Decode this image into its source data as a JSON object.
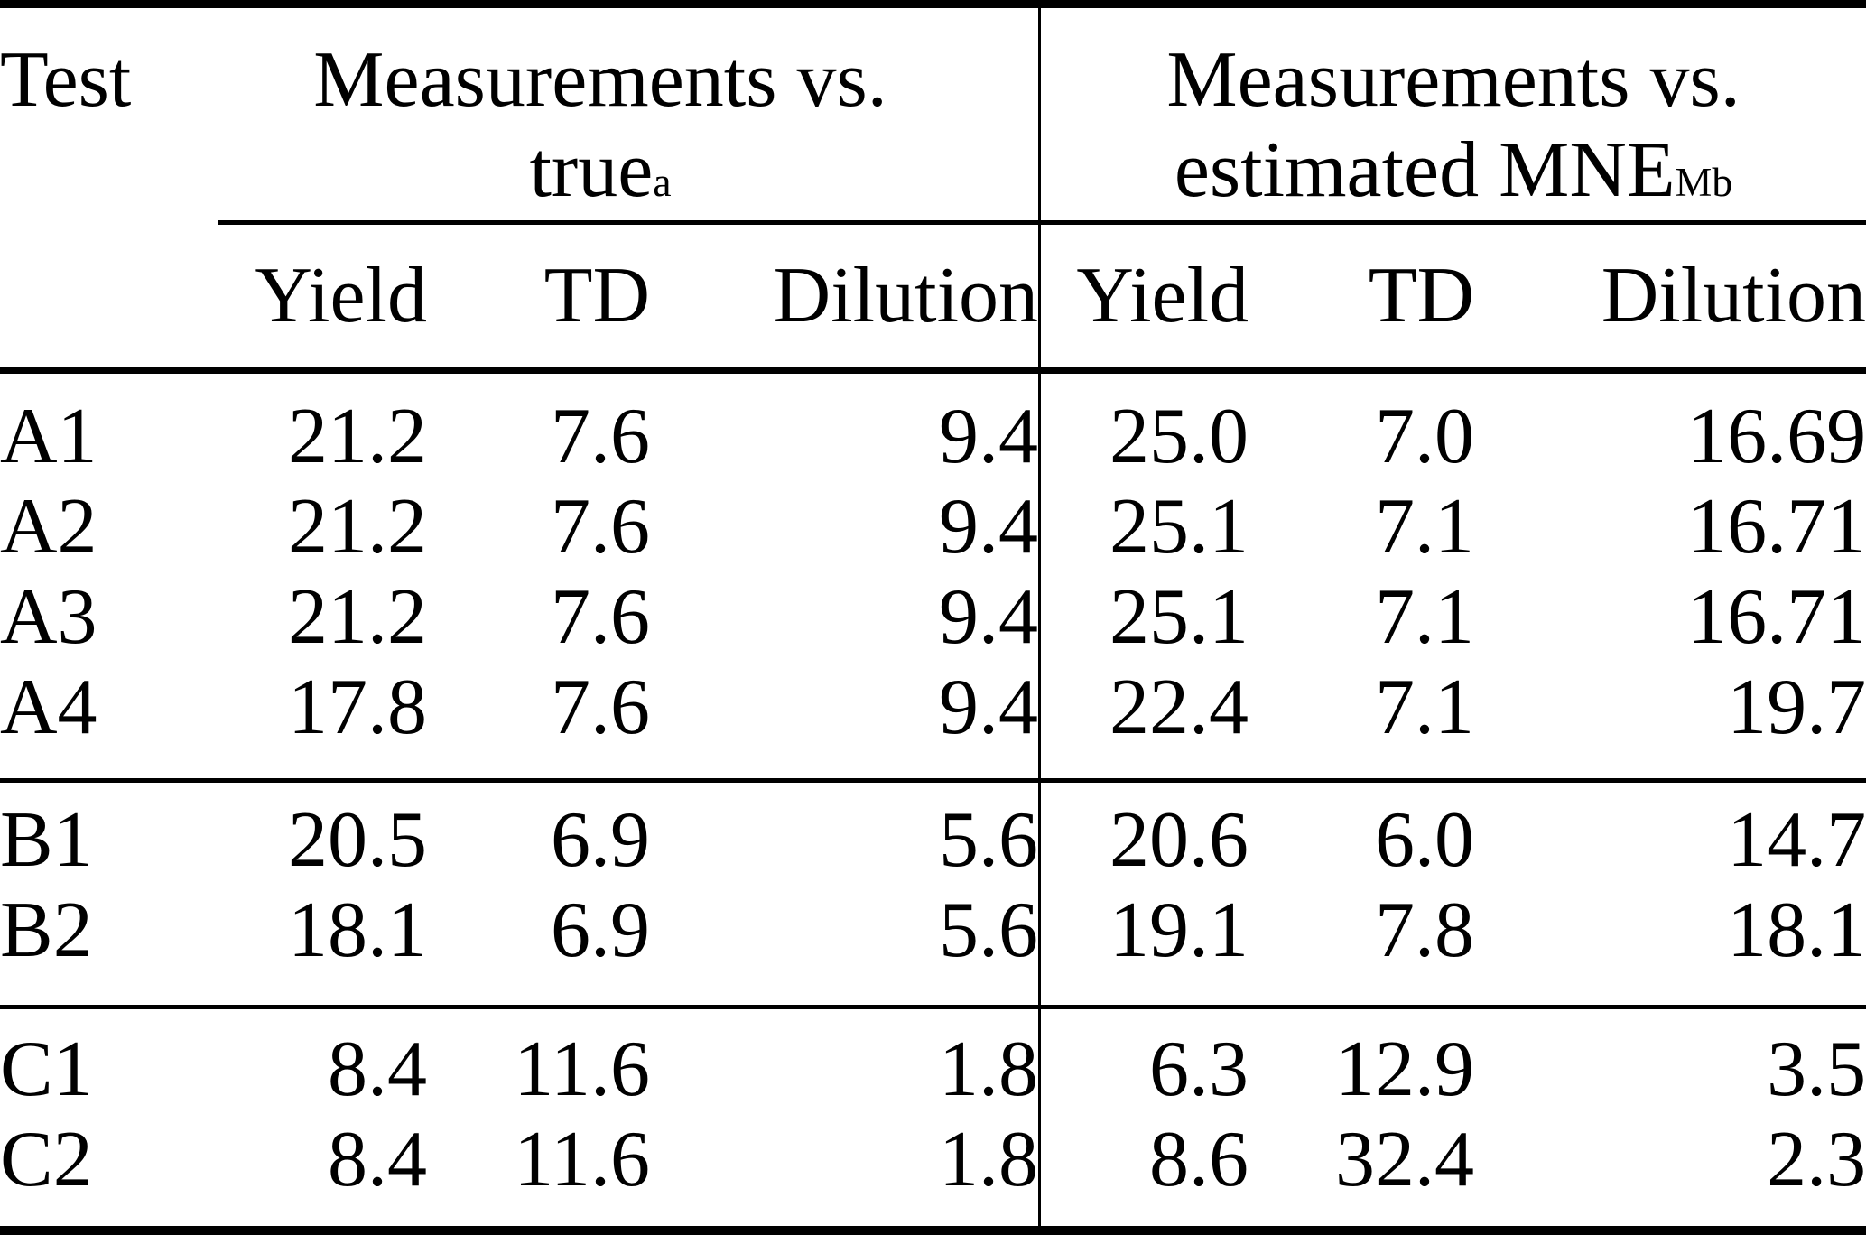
{
  "colors": {
    "text": "#000000",
    "background": "#ffffff",
    "rule": "#000000"
  },
  "table": {
    "corner_header": "Test",
    "groups": [
      {
        "line1": "Measurements vs.",
        "line2_base": "true",
        "line2_sub": "",
        "line2_sup": "a",
        "columns": [
          "Yield",
          "TD",
          "Dilution"
        ]
      },
      {
        "line1": "Measurements vs.",
        "line2_base": "estimated MNE",
        "line2_sub": "M",
        "line2_sup": "b",
        "columns": [
          "Yield",
          "TD",
          "Dilution"
        ]
      }
    ],
    "sections": [
      {
        "rows": [
          {
            "test": "A1",
            "true": [
              "21.2",
              "7.6",
              "9.4"
            ],
            "estimated": [
              "25.0",
              "7.0",
              "16.69"
            ]
          },
          {
            "test": "A2",
            "true": [
              "21.2",
              "7.6",
              "9.4"
            ],
            "estimated": [
              "25.1",
              "7.1",
              "16.71"
            ]
          },
          {
            "test": "A3",
            "true": [
              "21.2",
              "7.6",
              "9.4"
            ],
            "estimated": [
              "25.1",
              "7.1",
              "16.71"
            ]
          },
          {
            "test": "A4",
            "true": [
              "17.8",
              "7.6",
              "9.4"
            ],
            "estimated": [
              "22.4",
              "7.1",
              "19.7"
            ]
          }
        ]
      },
      {
        "rows": [
          {
            "test": "B1",
            "true": [
              "20.5",
              "6.9",
              "5.6"
            ],
            "estimated": [
              "20.6",
              "6.0",
              "14.7"
            ]
          },
          {
            "test": "B2",
            "true": [
              "18.1",
              "6.9",
              "5.6"
            ],
            "estimated": [
              "19.1",
              "7.8",
              "18.1"
            ]
          }
        ]
      },
      {
        "rows": [
          {
            "test": "C1",
            "true": [
              "8.4",
              "11.6",
              "1.8"
            ],
            "estimated": [
              "6.3",
              "12.9",
              "3.5"
            ]
          },
          {
            "test": "C2",
            "true": [
              "8.4",
              "11.6",
              "1.8"
            ],
            "estimated": [
              "8.6",
              "32.4",
              "2.3"
            ]
          }
        ]
      }
    ]
  }
}
